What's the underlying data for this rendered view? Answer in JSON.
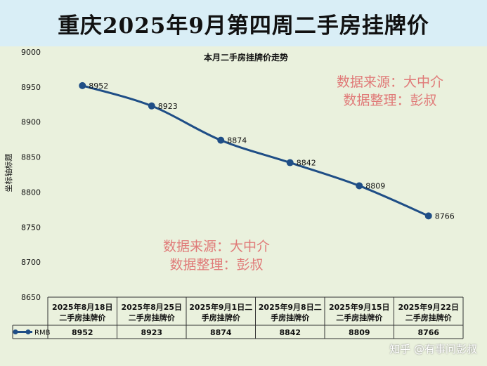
{
  "header": {
    "title": "重庆2025年9月第四周二手房挂牌价"
  },
  "chart_data": {
    "type": "line",
    "title": "本月二手房挂牌价走势",
    "ylabel": "坐标轴标题",
    "ylim": [
      8650,
      9000
    ],
    "yticks": [
      8650,
      8700,
      8750,
      8800,
      8850,
      8900,
      8950,
      9000
    ],
    "categories": [
      [
        "2025年8月18日",
        "二手房挂牌价"
      ],
      [
        "2025年8月25日",
        "二手房挂牌价"
      ],
      [
        "2025年9月1日二",
        "手房挂牌价"
      ],
      [
        "2025年9月8日二",
        "手房挂牌价"
      ],
      [
        "2025年9月15日",
        "二手房挂牌价"
      ],
      [
        "2025年9月22日",
        "二手房挂牌价"
      ]
    ],
    "series": [
      {
        "name": "RMB",
        "values": [
          8952,
          8923,
          8874,
          8842,
          8809,
          8766
        ],
        "color": "#1f4e86"
      }
    ],
    "data_table": true,
    "legend": "data-table-left"
  },
  "watermarks": {
    "top": [
      "数据来源：大中介",
      "数据整理：彭叔"
    ],
    "bottom": [
      "数据来源：大中介",
      "数据整理：彭叔"
    ],
    "corner": "知乎 @有事问彭叔"
  }
}
